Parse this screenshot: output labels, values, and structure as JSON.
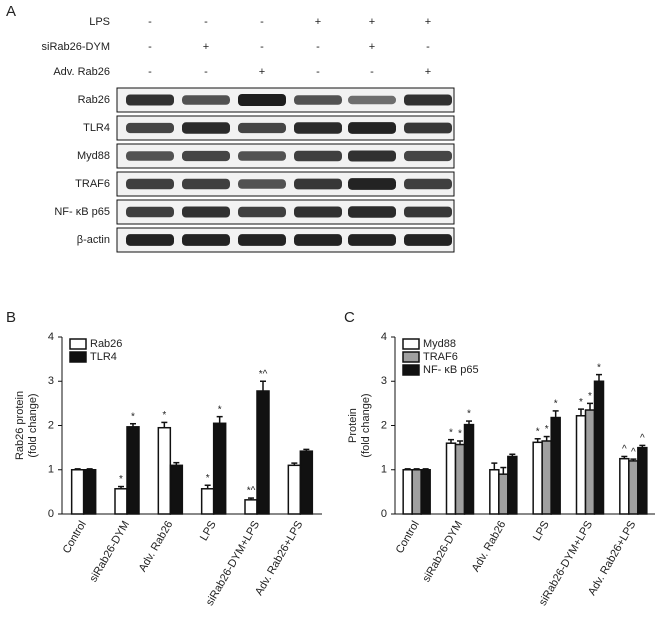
{
  "panel_a": {
    "panel_label": "A",
    "conditions": [
      {
        "label": "LPS",
        "signs": [
          "-",
          "-",
          "-",
          "+",
          "+",
          "+"
        ]
      },
      {
        "label": "siRab26-DYM",
        "signs": [
          "-",
          "+",
          "-",
          "-",
          "+",
          "-"
        ]
      },
      {
        "label": "Adv. Rab26",
        "signs": [
          "-",
          "-",
          "+",
          "-",
          "-",
          "+"
        ]
      }
    ],
    "blots": [
      "Rab26",
      "TLR4",
      "Myd88",
      "TRAF6",
      "NF- κB p65",
      "β-actin"
    ]
  },
  "chart_data": [
    {
      "type": "bar",
      "panel_label": "B",
      "ylabel": [
        "Rab26 protein",
        "(fold change)"
      ],
      "categories": [
        "Control",
        "siRab26-DYM",
        "Adv. Rab26",
        "LPS",
        "siRab26-DYM+LPS",
        "Adv. Rab26+LPS"
      ],
      "series": [
        {
          "name": "Rab26",
          "color": "#ffffff",
          "values": [
            1,
            0.57,
            1.95,
            0.57,
            0.32,
            1.1
          ],
          "errors": [
            0.02,
            0.05,
            0.12,
            0.08,
            0.04,
            0.05
          ],
          "annotations": [
            null,
            "*",
            "*",
            "*",
            "*^",
            null
          ]
        },
        {
          "name": "TLR4",
          "color": "#111111",
          "values": [
            1,
            1.97,
            1.1,
            2.05,
            2.78,
            1.42
          ],
          "errors": [
            0.02,
            0.07,
            0.06,
            0.15,
            0.22,
            0.04
          ],
          "annotations": [
            null,
            "*",
            null,
            "*",
            "*^",
            null
          ]
        }
      ],
      "ylim": [
        0,
        4
      ],
      "yticks": [
        0,
        1,
        2,
        3,
        4
      ],
      "legend": "upper left"
    },
    {
      "type": "bar",
      "panel_label": "C",
      "ylabel": [
        "Protein",
        "(fold change)"
      ],
      "categories": [
        "Control",
        "siRab26-DYM",
        "Adv. Rab26",
        "LPS",
        "siRab26-DYM+LPS",
        "Adv. Rab26+LPS"
      ],
      "series": [
        {
          "name": "Myd88",
          "color": "#ffffff",
          "values": [
            1,
            1.6,
            1.0,
            1.62,
            2.22,
            1.25
          ],
          "errors": [
            0.02,
            0.08,
            0.15,
            0.08,
            0.15,
            0.05
          ],
          "annotations": [
            null,
            "*",
            null,
            "*",
            "*",
            "^"
          ]
        },
        {
          "name": "TRAF6",
          "color": "#a0a0a0",
          "values": [
            1,
            1.57,
            0.9,
            1.65,
            2.35,
            1.2
          ],
          "errors": [
            0.02,
            0.08,
            0.15,
            0.1,
            0.15,
            0.04
          ],
          "annotations": [
            null,
            "*",
            null,
            "*",
            "*",
            "^"
          ]
        },
        {
          "name": "NF- κB p65",
          "color": "#111111",
          "values": [
            1,
            2.02,
            1.3,
            2.18,
            3.0,
            1.5
          ],
          "errors": [
            0.02,
            0.08,
            0.05,
            0.15,
            0.15,
            0.05
          ],
          "annotations": [
            null,
            "*",
            null,
            "*",
            "*",
            "^"
          ]
        }
      ],
      "ylim": [
        0,
        4
      ],
      "yticks": [
        0,
        1,
        2,
        3,
        4
      ],
      "legend": "upper left"
    }
  ]
}
